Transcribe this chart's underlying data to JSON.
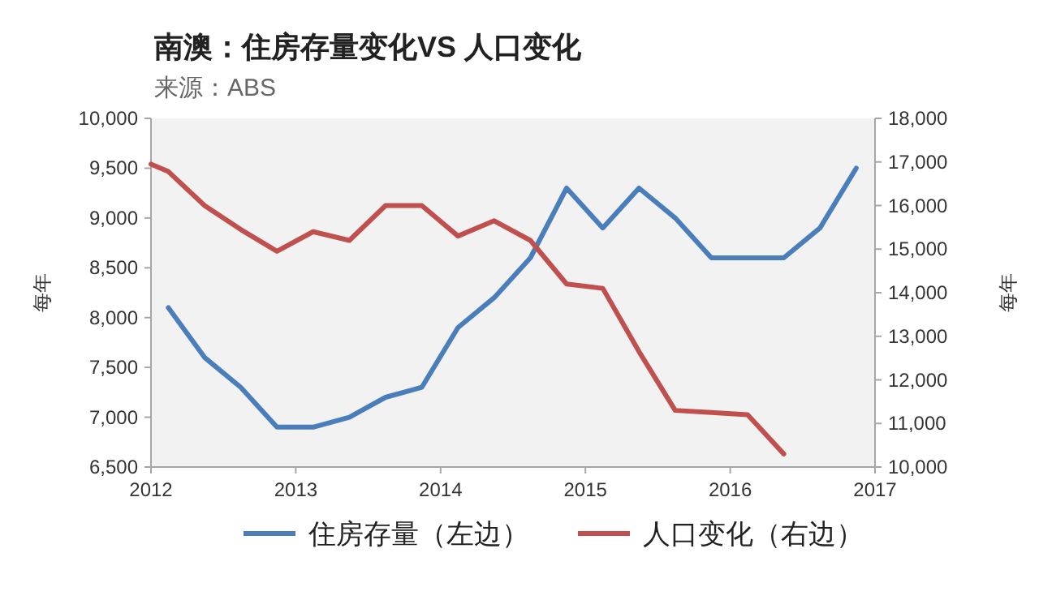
{
  "chart_data": {
    "type": "line",
    "title": "南澳：住房存量变化VS 人口变化",
    "subtitle": "来源：ABS",
    "ylabel": "每年",
    "y2label": "每年",
    "xlim": [
      2012,
      2017
    ],
    "xticks": [
      2012,
      2013,
      2014,
      2015,
      2016,
      2017
    ],
    "ylim": [
      6500,
      10000
    ],
    "yticks": [
      {
        "value": 6500,
        "label": "6,500"
      },
      {
        "value": 7000,
        "label": "7,000"
      },
      {
        "value": 7500,
        "label": "7,500"
      },
      {
        "value": 8000,
        "label": "8,000"
      },
      {
        "value": 8500,
        "label": "8,500"
      },
      {
        "value": 9000,
        "label": "9,000"
      },
      {
        "value": 9500,
        "label": "9,500"
      },
      {
        "value": 10000,
        "label": "10,000"
      }
    ],
    "y2lim": [
      10000,
      18000
    ],
    "y2ticks": [
      {
        "value": 10000,
        "label": "10,000"
      },
      {
        "value": 11000,
        "label": "11,000"
      },
      {
        "value": 12000,
        "label": "12,000"
      },
      {
        "value": 13000,
        "label": "13,000"
      },
      {
        "value": 14000,
        "label": "14,000"
      },
      {
        "value": 15000,
        "label": "15,000"
      },
      {
        "value": 16000,
        "label": "16,000"
      },
      {
        "value": 17000,
        "label": "17,000"
      },
      {
        "value": 18000,
        "label": "18,000"
      }
    ],
    "legend": "bottom",
    "grid": false,
    "series": [
      {
        "name": "住房存量（左边）",
        "color": "#4a7ebb",
        "x": [
          2012.12,
          2012.37,
          2012.62,
          2012.87,
          2013.12,
          2013.37,
          2013.62,
          2013.87,
          2014.12,
          2014.37,
          2014.62,
          2014.87,
          2015.12,
          2015.37,
          2015.62,
          2015.87,
          2016.12,
          2016.37,
          2016.62,
          2016.87
        ],
        "values": [
          8100,
          7600,
          7300,
          6900,
          6900,
          7000,
          7200,
          7300,
          7900,
          8200,
          8600,
          9300,
          8900,
          9300,
          9000,
          8600,
          8600,
          8600,
          8900,
          9500
        ]
      },
      {
        "name": "人口变化（右边）",
        "color": "#c0504d",
        "axis": "y2",
        "x": [
          2012.0,
          2012.12,
          2012.37,
          2012.62,
          2012.87,
          2013.12,
          2013.37,
          2013.62,
          2013.87,
          2014.12,
          2014.37,
          2014.62,
          2014.87,
          2015.12,
          2015.37,
          2015.62,
          2015.87,
          2016.12,
          2016.37
        ],
        "values": [
          16950,
          16780,
          16000,
          15450,
          14950,
          15400,
          15200,
          16000,
          16000,
          15300,
          15650,
          15200,
          14200,
          14100,
          12650,
          11300,
          11250,
          11200,
          10300
        ]
      }
    ]
  }
}
